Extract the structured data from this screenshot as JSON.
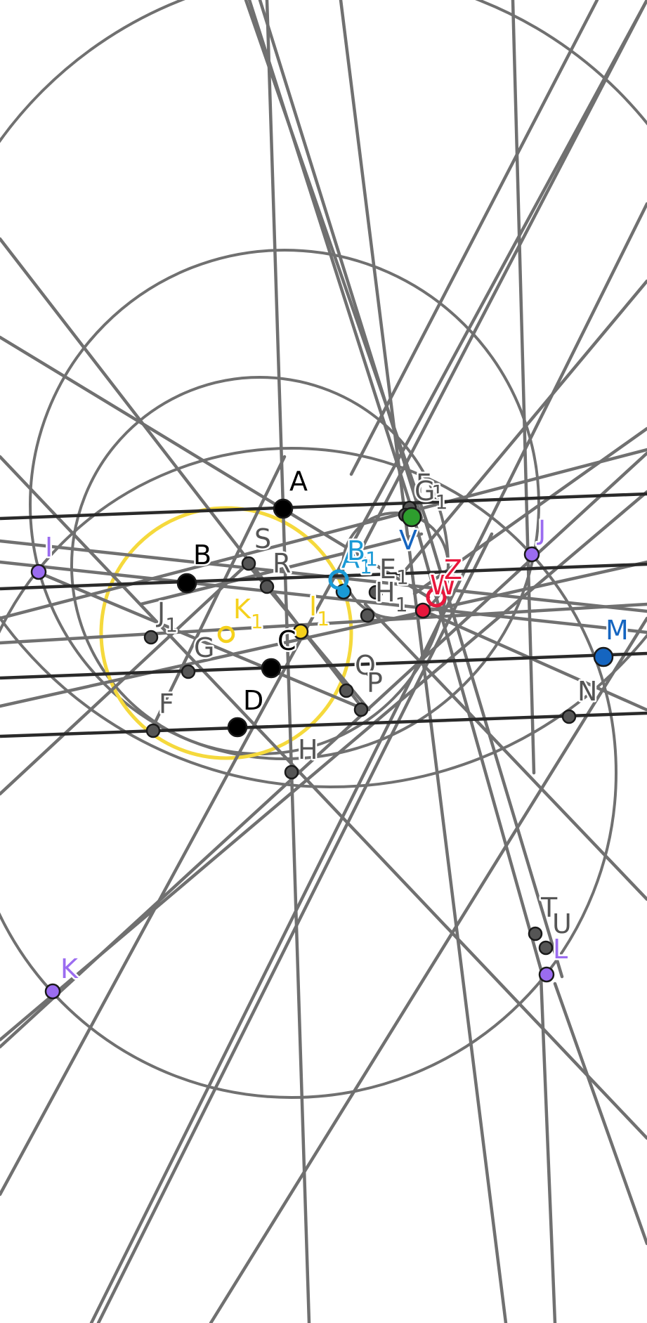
{
  "colors": {
    "line": "#707070",
    "dark_line": "#2a2a2a",
    "circle": "#707070",
    "incircle": "#f5d93c",
    "point_gray": "#555555",
    "point_black": "#000000",
    "point_purple": "#9b6cf0",
    "point_blue": "#1565c0",
    "point_cyan": "#1a9ad6",
    "point_yellow": "#f5d11c",
    "point_red": "#e8173c",
    "point_green": "#2e9e2e",
    "label_gray": "#555555",
    "label_black": "#000000",
    "label_purple": "#9b6cf0",
    "label_blue": "#1565c0",
    "label_cyan": "#1a9ad6",
    "label_yellow": "#f5d11c",
    "label_red": "#e8173c"
  },
  "points": {
    "A": {
      "label": "A",
      "style": "black"
    },
    "B": {
      "label": "B",
      "style": "black"
    },
    "C": {
      "label": "C",
      "style": "black"
    },
    "D": {
      "label": "D",
      "style": "black"
    },
    "F": {
      "label": "F",
      "style": "gray"
    },
    "G": {
      "label": "G",
      "style": "gray"
    },
    "H": {
      "label": "H",
      "style": "gray"
    },
    "I": {
      "label": "I",
      "style": "purple"
    },
    "J": {
      "label": "J",
      "style": "purple"
    },
    "K": {
      "label": "K",
      "style": "purple"
    },
    "L": {
      "label": "L",
      "style": "purple"
    },
    "M": {
      "label": "M",
      "style": "blue"
    },
    "N": {
      "label": "N",
      "style": "gray"
    },
    "Q": {
      "label": "Q",
      "style": "gray"
    },
    "P": {
      "label": "P",
      "style": "gray"
    },
    "R": {
      "label": "R",
      "style": "gray"
    },
    "S": {
      "label": "S",
      "style": "gray"
    },
    "T": {
      "label": "T",
      "style": "gray"
    },
    "U": {
      "label": "U",
      "style": "gray"
    },
    "V": {
      "label": "V",
      "style": "green"
    },
    "W": {
      "label": "W",
      "style": "red_ring"
    },
    "Z": {
      "label": "Z",
      "style": "red"
    },
    "A1": {
      "label": "A",
      "sub": "1",
      "style": "cyan_ring"
    },
    "B1": {
      "label": "B",
      "sub": "1",
      "style": "cyan"
    },
    "E1": {
      "label": "E",
      "sub": "1",
      "style": "gray"
    },
    "F1": {
      "label": "F",
      "sub": "1",
      "style": "gray"
    },
    "G1": {
      "label": "G",
      "sub": "1",
      "style": "gray"
    },
    "H1": {
      "label": "H",
      "sub": "1",
      "style": "gray"
    },
    "I1": {
      "label": "I",
      "sub": "1",
      "style": "yellow"
    },
    "J1": {
      "label": "J",
      "sub": "1",
      "style": "gray"
    },
    "K1": {
      "label": "K",
      "sub": "1",
      "style": "yellow_ring"
    }
  }
}
